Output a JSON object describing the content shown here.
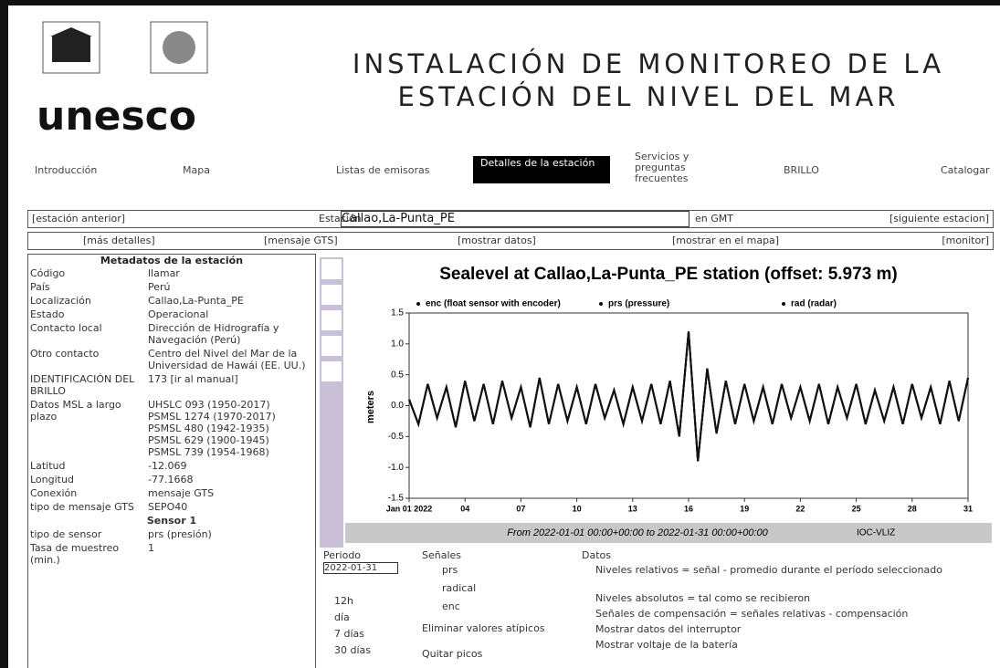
{
  "header": {
    "logo": "unesco",
    "title_line1": "INSTALACIÓN DE MONITOREO DE LA",
    "title_line2": "ESTACIÓN DEL NIVEL DEL MAR"
  },
  "nav": [
    "Introducción",
    "Mapa",
    "Listas de emisoras",
    "Detalles de la estación",
    "Servicios y preguntas frecuentes",
    "BRILLO",
    "Catalogar"
  ],
  "station_bar": {
    "prev": "[estación anterior]",
    "label": "Estación",
    "station": "Callao,La-Punta_PE",
    "tz": "en GMT",
    "next": "[siguiente estacion]"
  },
  "links": [
    "[más detalles]",
    "[mensaje GTS]",
    "[mostrar datos]",
    "[mostrar en el mapa]",
    "[monitor]"
  ],
  "metadata": {
    "heading": "Metadatos de la estación",
    "rows": [
      [
        "Código",
        "llamar"
      ],
      [
        "País",
        "Perú"
      ],
      [
        "Localización",
        "Callao,La-Punta_PE"
      ],
      [
        "Estado",
        "Operacional"
      ],
      [
        "Contacto local",
        "Dirección de Hidrografía y Navegación (Perú)"
      ],
      [
        "Otro contacto",
        "Centro del Nivel del Mar de la Universidad de Hawái (EE. UU.)"
      ],
      [
        "IDENTIFICACIÓN DEL BRILLO",
        "173  [ir al manual]"
      ],
      [
        "Datos MSL a largo plazo",
        "UHSLC 093 (1950-2017)\nPSMSL 1274 (1970-2017)\nPSMSL 480 (1942-1935)\nPSMSL 629 (1900-1945)\nPSMSL 739 (1954-1968)"
      ],
      [
        "Latitud",
        "-12.069"
      ],
      [
        "Longitud",
        "-77.1668"
      ],
      [
        "Conexión",
        "mensaje GTS"
      ],
      [
        "tipo de mensaje GTS",
        "SEPO40"
      ]
    ],
    "sensor_heading": "Sensor 1",
    "sensor_rows": [
      [
        "tipo de sensor",
        "prs (presión)"
      ],
      [
        "Tasa de muestreo (min.)",
        "1"
      ]
    ]
  },
  "chart_data": {
    "type": "line",
    "title": "Sealevel at Callao,La-Punta_PE station (offset: 5.973 m)",
    "subtitle": "From 2022-01-01 00:00+00:00 to 2022-01-31 00:00+00:00",
    "credit": "IOC-VLIZ",
    "y_label": "meters",
    "x": [
      1,
      1.5,
      2,
      2.5,
      3,
      3.5,
      4,
      4.5,
      5,
      5.5,
      6,
      6.5,
      7,
      7.5,
      8,
      8.5,
      9,
      9.5,
      10,
      10.5,
      11,
      11.5,
      12,
      12.5,
      13,
      13.5,
      14,
      14.5,
      15,
      15.5,
      16,
      16.5,
      17,
      17.5,
      18,
      18.5,
      19,
      19.5,
      20,
      20.5,
      21,
      21.5,
      22,
      22.5,
      23,
      23.5,
      24,
      24.5,
      25,
      25.5,
      26,
      26.5,
      27,
      27.5,
      28,
      28.5,
      29,
      29.5,
      30,
      30.5,
      31
    ],
    "series": [
      {
        "name": "enc (float sensor with encoder)",
        "color": "#111111",
        "values": [
          0.1,
          -0.3,
          0.35,
          -0.2,
          0.3,
          -0.35,
          0.4,
          -0.25,
          0.35,
          -0.3,
          0.4,
          -0.2,
          0.3,
          -0.35,
          0.45,
          -0.3,
          0.35,
          -0.25,
          0.3,
          -0.3,
          0.35,
          -0.2,
          0.25,
          -0.3,
          0.3,
          -0.25,
          0.35,
          -0.3,
          0.4,
          -0.5,
          1.2,
          -0.9,
          0.6,
          -0.45,
          0.4,
          -0.3,
          0.35,
          -0.25,
          0.3,
          -0.3,
          0.35,
          -0.2,
          0.3,
          -0.25,
          0.35,
          -0.3,
          0.3,
          -0.2,
          0.35,
          -0.3,
          0.25,
          -0.25,
          0.3,
          -0.3,
          0.35,
          -0.2,
          0.3,
          -0.3,
          0.4,
          -0.25,
          0.45
        ]
      },
      {
        "name": "prs (pressure)",
        "color": "#111111",
        "values": [
          0.1,
          -0.3,
          0.35,
          -0.2,
          0.3,
          -0.35,
          0.4,
          -0.25,
          0.35,
          -0.3,
          0.4,
          -0.2,
          0.3,
          -0.35,
          0.45,
          -0.3,
          0.35,
          -0.25,
          0.3,
          -0.3,
          0.35,
          -0.2,
          0.25,
          -0.3,
          0.3,
          -0.25,
          0.35,
          -0.3,
          0.4,
          -0.5,
          1.2,
          -0.9,
          0.6,
          -0.45,
          0.4,
          -0.3,
          0.35,
          -0.25,
          0.3,
          -0.3,
          0.35,
          -0.2,
          0.3,
          -0.25,
          0.35,
          -0.3,
          0.3,
          -0.2,
          0.35,
          -0.3,
          0.25,
          -0.25,
          0.3,
          -0.3,
          0.35,
          -0.2,
          0.3,
          -0.3,
          0.4,
          -0.25,
          0.45
        ]
      },
      {
        "name": "rad (radar)",
        "color": "#111111",
        "values": [
          0.1,
          -0.3,
          0.35,
          -0.2,
          0.3,
          -0.35,
          0.4,
          -0.25,
          0.35,
          -0.3,
          0.4,
          -0.2,
          0.3,
          -0.35,
          0.45,
          -0.3,
          0.35,
          -0.25,
          0.3,
          -0.3,
          0.35,
          -0.2,
          0.25,
          -0.3,
          0.3,
          -0.25,
          0.35,
          -0.3,
          0.4,
          -0.5,
          1.2,
          -0.9,
          0.6,
          -0.45,
          0.4,
          -0.3,
          0.35,
          -0.25,
          0.3,
          -0.3,
          0.35,
          -0.2,
          0.3,
          -0.25,
          0.35,
          -0.3,
          0.3,
          -0.2,
          0.35,
          -0.3,
          0.25,
          -0.25,
          0.3,
          -0.3,
          0.35,
          -0.2,
          0.3,
          -0.3,
          0.4,
          -0.25,
          0.45
        ]
      }
    ],
    "xlim": [
      1,
      31
    ],
    "xticks": [
      {
        "value": 1,
        "label": "Jan 01 2022"
      },
      {
        "value": 4,
        "label": "04"
      },
      {
        "value": 7,
        "label": "07"
      },
      10,
      13,
      16,
      19,
      22,
      25,
      28,
      31
    ],
    "ylim": [
      -1.5,
      1.5
    ],
    "yticks": [
      -1.5,
      {
        "value": -1,
        "label": "-1.0"
      },
      -0.5,
      {
        "value": 0,
        "label": "0.0"
      },
      0.5,
      {
        "value": 1,
        "label": "1.0"
      },
      1.5
    ]
  },
  "controls": {
    "period_label": "Periodo",
    "date": "2022-01-31",
    "periods": [
      "12h",
      "día",
      "7 días",
      "30 días"
    ],
    "signals_label": "Señales",
    "signals": [
      "prs",
      "radical",
      "enc"
    ],
    "remove_outliers": "Eliminar valores atípicos",
    "remove_spikes": "Quitar picos",
    "data_label": "Datos",
    "data_options": [
      "Niveles relativos = señal - promedio durante el período seleccionado",
      "Niveles absolutos = tal como se recibieron",
      "Señales de compensación = señales relativas - compensación",
      "Mostrar datos del interruptor",
      "Mostrar voltaje de la batería"
    ]
  }
}
